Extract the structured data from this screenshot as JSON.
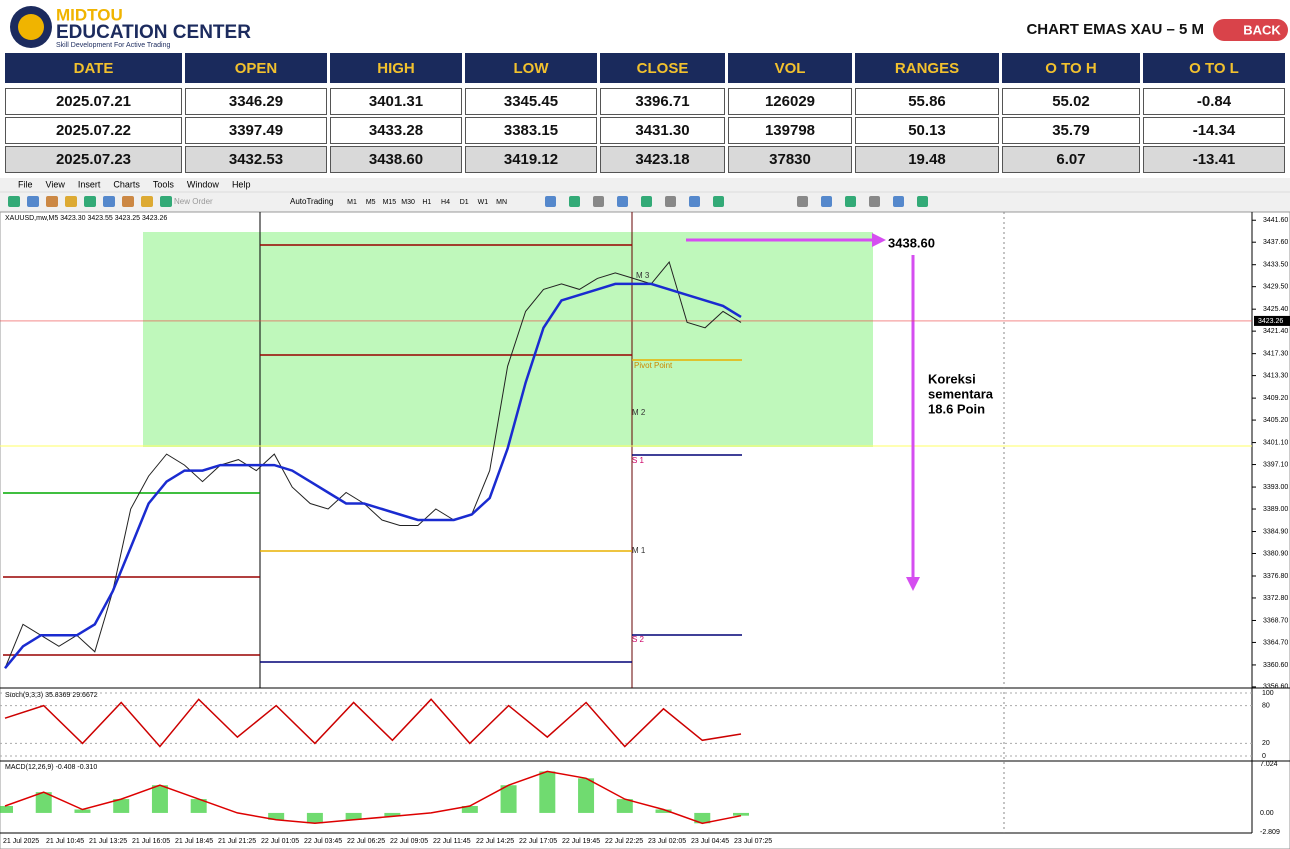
{
  "header": {
    "brand": "MIDTOU",
    "brand_sub": "EDUCATION CENTER",
    "tagline": "Skill Development For Active Trading",
    "title": "CHART EMAS XAU – 5 M",
    "back": "BACK"
  },
  "table": {
    "columns": [
      "DATE",
      "OPEN",
      "HIGH",
      "LOW",
      "CLOSE",
      "VOL",
      "RANGES",
      "O TO H",
      "O TO L"
    ],
    "rows": [
      [
        "2025.07.21",
        "3346.29",
        "3401.31",
        "3345.45",
        "3396.71",
        "126029",
        "55.86",
        "55.02",
        "-0.84"
      ],
      [
        "2025.07.22",
        "3397.49",
        "3433.28",
        "3383.15",
        "3431.30",
        "139798",
        "50.13",
        "35.79",
        "-14.34"
      ],
      [
        "2025.07.23",
        "3432.53",
        "3438.60",
        "3419.12",
        "3423.18",
        "37830",
        "19.48",
        "6.07",
        "-13.41"
      ]
    ]
  },
  "menu": [
    "File",
    "View",
    "Insert",
    "Charts",
    "Tools",
    "Window",
    "Help"
  ],
  "toolbar": {
    "new_order": "New Order",
    "autotrading": "AutoTrading",
    "timeframes": [
      "M1",
      "M5",
      "M15",
      "M30",
      "H1",
      "H4",
      "D1",
      "W1",
      "MN"
    ]
  },
  "chart": {
    "info": "XAUUSD,mw,M5  3423.30 3423.55 3423.25 3423.26",
    "ylim": [
      3356.4,
      3443.1
    ],
    "yticks": [
      {
        "value": 3441.6,
        "label": "3441.60"
      },
      {
        "value": 3437.6,
        "label": "3437.60"
      },
      {
        "value": 3433.5,
        "label": "3433.50"
      },
      {
        "value": 3429.5,
        "label": "3429.50"
      },
      {
        "value": 3425.4,
        "label": "3425.40"
      },
      {
        "value": 3421.4,
        "label": "3421.40"
      },
      {
        "value": 3417.3,
        "label": "3417.30"
      },
      {
        "value": 3413.3,
        "label": "3413.30"
      },
      {
        "value": 3409.2,
        "label": "3409.20"
      },
      {
        "value": 3405.2,
        "label": "3405.20"
      },
      {
        "value": 3401.1,
        "label": "3401.10"
      },
      {
        "value": 3397.1,
        "label": "3397.10"
      },
      {
        "value": 3393,
        "label": "3393.00"
      },
      {
        "value": 3389,
        "label": "3389.00"
      },
      {
        "value": 3384.9,
        "label": "3384.90"
      },
      {
        "value": 3380.9,
        "label": "3380.90"
      },
      {
        "value": 3376.8,
        "label": "3376.80"
      },
      {
        "value": 3372.8,
        "label": "3372.80"
      },
      {
        "value": 3368.7,
        "label": "3368.70"
      },
      {
        "value": 3364.7,
        "label": "3364.70"
      },
      {
        "value": 3360.6,
        "label": "3360.60"
      },
      {
        "value": 3356.6,
        "label": "3356.60"
      }
    ],
    "current": {
      "value": 3423.26,
      "label": "3423.26"
    },
    "close": [
      3360,
      3368,
      3366,
      3364,
      3366,
      3363,
      3374,
      3389,
      3395,
      3399,
      3397,
      3394,
      3397,
      3398,
      3396,
      3399,
      3393,
      3390,
      3389,
      3392,
      3390,
      3387,
      3386,
      3386,
      3389,
      3387,
      3388,
      3396,
      3415,
      3425,
      3429,
      3430,
      3429,
      3431,
      3432,
      3431,
      3430,
      3434,
      3423,
      3422,
      3425,
      3423
    ],
    "ma": [
      3360,
      3364,
      3366,
      3366,
      3366,
      3368,
      3374,
      3382,
      3390,
      3394,
      3396,
      3396,
      3397,
      3397,
      3397,
      3397,
      3396,
      3394,
      3392,
      3390,
      3390,
      3389,
      3388,
      3387,
      3387,
      3387,
      3388,
      3391,
      3400,
      3412,
      3422,
      3427,
      3428,
      3429,
      3430,
      3430,
      3430,
      3429,
      3428,
      3427,
      3426,
      3424
    ],
    "pivots": [
      "M 3",
      "Pivot Point",
      "M 2",
      "S 1",
      "M 1",
      "S 2"
    ],
    "high_label": "3438.60",
    "note": [
      "Koreksi",
      "sementara",
      "18.6 Poin"
    ],
    "stoch": {
      "label": "Stoch(9,3,3) 35.8369 29.6672",
      "ticks": [
        100,
        80,
        20,
        0
      ],
      "values": [
        60,
        80,
        20,
        85,
        15,
        90,
        30,
        80,
        20,
        85,
        25,
        90,
        20,
        80,
        30,
        85,
        15,
        75,
        25,
        35
      ]
    },
    "macd": {
      "label": "MACD(12,26,9) -0.408 -0.310",
      "ylim": [
        -2.9,
        7.5
      ],
      "ticks": [
        {
          "value": 7.024,
          "label": "7.024"
        },
        {
          "value": 0,
          "label": "0.00"
        },
        {
          "value": -2.809,
          "label": "-2.809"
        }
      ],
      "values": [
        1,
        3,
        0.5,
        2,
        4,
        2,
        0,
        -1,
        -1.5,
        -1,
        -0.5,
        0,
        1,
        4,
        6,
        5,
        2,
        0.5,
        -1.5,
        -0.4
      ]
    },
    "time_labels": [
      "21 Jul 2025",
      "21 Jul 10:45",
      "21 Jul 13:25",
      "21 Jul 16:05",
      "21 Jul 18:45",
      "21 Jul 21:25",
      "22 Jul 01:05",
      "22 Jul 03:45",
      "22 Jul 06:25",
      "22 Jul 09:05",
      "22 Jul 11:45",
      "22 Jul 14:25",
      "22 Jul 17:05",
      "22 Jul 19:45",
      "22 Jul 22:25",
      "23 Jul 02:05",
      "23 Jul 04:45",
      "23 Jul 07:25"
    ]
  }
}
